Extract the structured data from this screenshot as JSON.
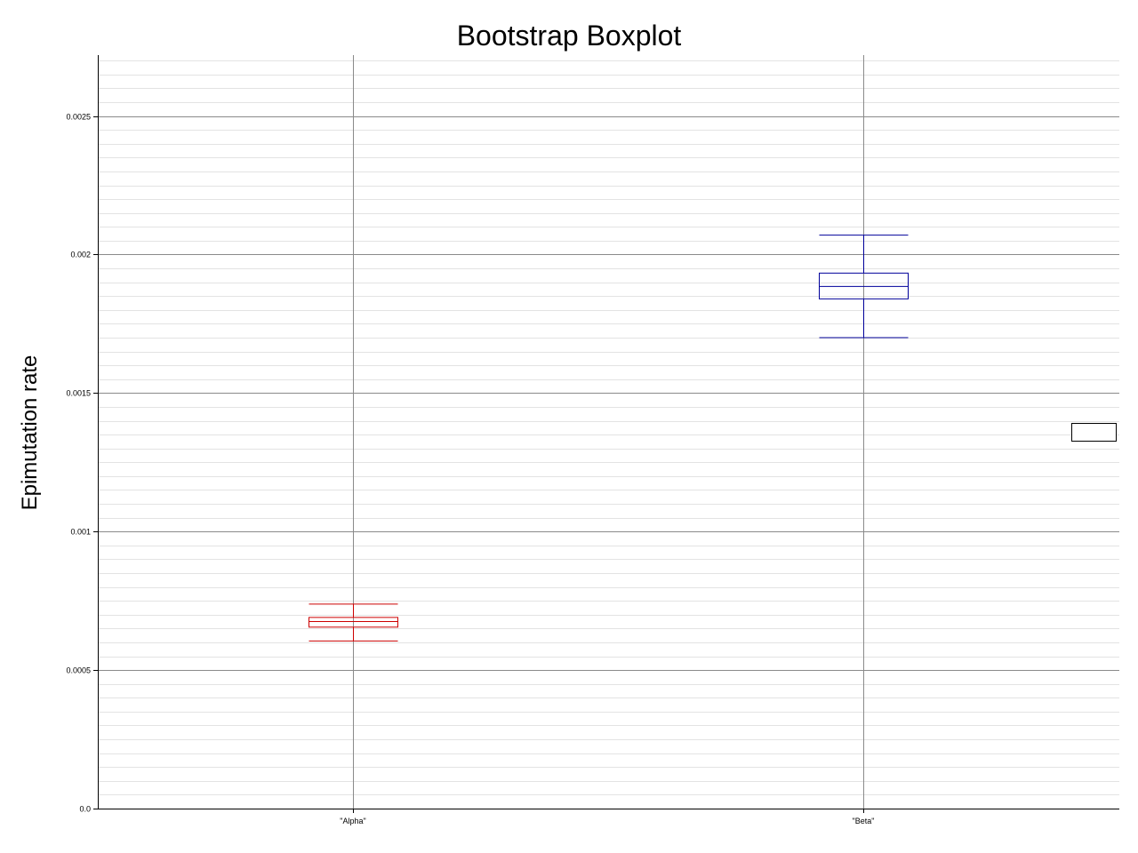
{
  "chart_data": {
    "type": "boxplot",
    "title": "Bootstrap Boxplot",
    "xlabel": "",
    "ylabel": "Epimutation rate",
    "categories": [
      "\"Alpha\"",
      "\"Beta\""
    ],
    "ylim": [
      0,
      0.00272
    ],
    "yticks": [
      0,
      0.0005,
      0.001,
      0.0015,
      0.002,
      0.0025
    ],
    "ytick_labels": [
      "0.0",
      "0.0005",
      "0.001",
      "0.0015",
      "0.002",
      "0.0025"
    ],
    "minor_grid_step": 5e-05,
    "grid": true,
    "legend": {
      "placement": "right",
      "entries": [
        ""
      ]
    },
    "series": [
      {
        "category": "\"Alpha\"",
        "color": "#cc0000",
        "whisker_low": 0.000605,
        "q1": 0.000655,
        "median": 0.000675,
        "q3": 0.00069,
        "whisker_high": 0.000738
      },
      {
        "category": "\"Beta\"",
        "color": "#00009a",
        "whisker_low": 0.0017,
        "q1": 0.00184,
        "median": 0.001885,
        "q3": 0.001933,
        "whisker_high": 0.00207
      }
    ]
  }
}
